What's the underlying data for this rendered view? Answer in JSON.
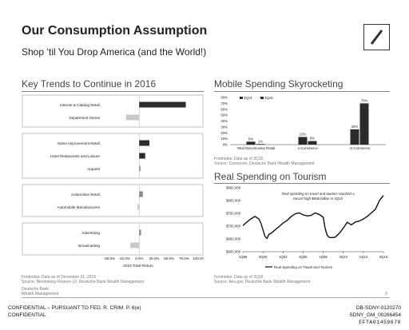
{
  "header": {
    "title": "Our Consumption Assumption",
    "subtitle": "Shop ‘til You Drop America (and the World!)"
  },
  "sections": {
    "left_title": "Key Trends to Continue in 2016",
    "mobile_title": "Mobile Spending Skyrocketing",
    "tourism_title": "Real Spending on Tourism"
  },
  "footnotes": {
    "left": [
      "Footnotes: Data as of December 31, 2015",
      "Source: Bloomberg Finance LP, Deutsche Bank Wealth Management"
    ],
    "mobile": [
      "Footnotes: Data as of 3Q15",
      "Source: Comscore, Deutsche Bank Wealth Management"
    ],
    "tourism": [
      "Footnotes: Data as of 3Q15",
      "Source: bea.gov, Deutsche Bank Wealth Management"
    ]
  },
  "brand": [
    "Deutsche Bank",
    "Wealth Management"
  ],
  "page_number": "9",
  "bottom": {
    "left": [
      "CONFIDENTIAL – PURSUANT TO FED. R. CRIM. P. 6(e)",
      "CONFIDENTIAL"
    ],
    "right": [
      "DB-SDNY-0120270",
      "SDNY_GM_00266454",
      "EFTA01459670"
    ]
  },
  "chart_data": [
    {
      "type": "bar",
      "orientation": "horizontal",
      "xlabel": "2015 Total Return",
      "x_ticks": [
        "-50.0%",
        "-25.0%",
        "0.0%",
        "25.0%",
        "50.0%",
        "75.0%",
        "100.0%"
      ],
      "xlim": [
        -50,
        100
      ],
      "groups": [
        {
          "categories": [
            "Internet & Catalog Retail",
            "Department Stores"
          ],
          "values": [
            78,
            -22
          ]
        },
        {
          "categories": [
            "Home Improvement Retail",
            "Hotel Restaurants and Leisure",
            "Apparel"
          ],
          "values": [
            17,
            10,
            2
          ]
        },
        {
          "categories": [
            "Automotive Retail",
            "Automobile Manufacturers"
          ],
          "values": [
            6,
            -3
          ]
        },
        {
          "categories": [
            "Advertising",
            "Broadcasting"
          ],
          "values": [
            3,
            -15
          ]
        }
      ],
      "colors": {
        "positive": "#2b2b2b",
        "negative": "#c8c8c8",
        "mixed": "#888888"
      }
    },
    {
      "type": "bar",
      "categories": [
        "Total Discretionary Retail",
        "e-Commerce",
        "m-Commerce"
      ],
      "series": [
        {
          "name": "3Q13",
          "values": [
            5,
            13,
            26
          ]
        },
        {
          "name": "3Q15",
          "values": [
            1,
            6,
            70
          ]
        }
      ],
      "data_labels": [
        [
          "5%",
          "13%",
          "26%"
        ],
        [
          "1%",
          "6%",
          "70%"
        ]
      ],
      "y_ticks": [
        "0%",
        "10%",
        "20%",
        "30%",
        "40%",
        "50%",
        "60%",
        "70%",
        "80%"
      ],
      "ylim": [
        0,
        80
      ],
      "legend": "top-left",
      "colors": [
        "#2b2b2b",
        "#2b2b2b"
      ]
    },
    {
      "type": "line",
      "series": [
        {
          "name": "Real Spending on Travel and Tourism"
        }
      ],
      "x_ticks": [
        "1Q98",
        "3Q00",
        "1Q03",
        "3Q05",
        "1Q08",
        "3Q10",
        "1Q13",
        "3Q15"
      ],
      "y_ticks": [
        "$600,000",
        "$650,000",
        "$700,000",
        "$750,000",
        "$800,000",
        "$850,000"
      ],
      "ylim": [
        600000,
        850000
      ],
      "x_index": [
        0,
        2,
        4,
        6,
        8,
        9,
        11,
        12,
        13,
        14,
        16,
        18,
        20,
        22,
        24,
        26,
        28,
        30,
        32,
        34,
        36,
        38,
        40,
        41,
        42,
        43,
        44,
        46,
        48,
        50,
        52,
        54,
        56,
        58,
        60,
        62,
        64,
        66,
        68,
        70
      ],
      "values": [
        702000,
        716000,
        728000,
        738000,
        728000,
        712000,
        660000,
        652000,
        668000,
        672000,
        685000,
        698000,
        712000,
        722000,
        737000,
        748000,
        752000,
        744000,
        740000,
        742000,
        752000,
        746000,
        735000,
        690000,
        664000,
        656000,
        655000,
        657000,
        672000,
        692000,
        715000,
        705000,
        716000,
        720000,
        728000,
        738000,
        752000,
        766000,
        800000,
        820000
      ],
      "annotation": "Real spending on travel and tourism reached a record high $836 billion in 3Q15"
    }
  ]
}
